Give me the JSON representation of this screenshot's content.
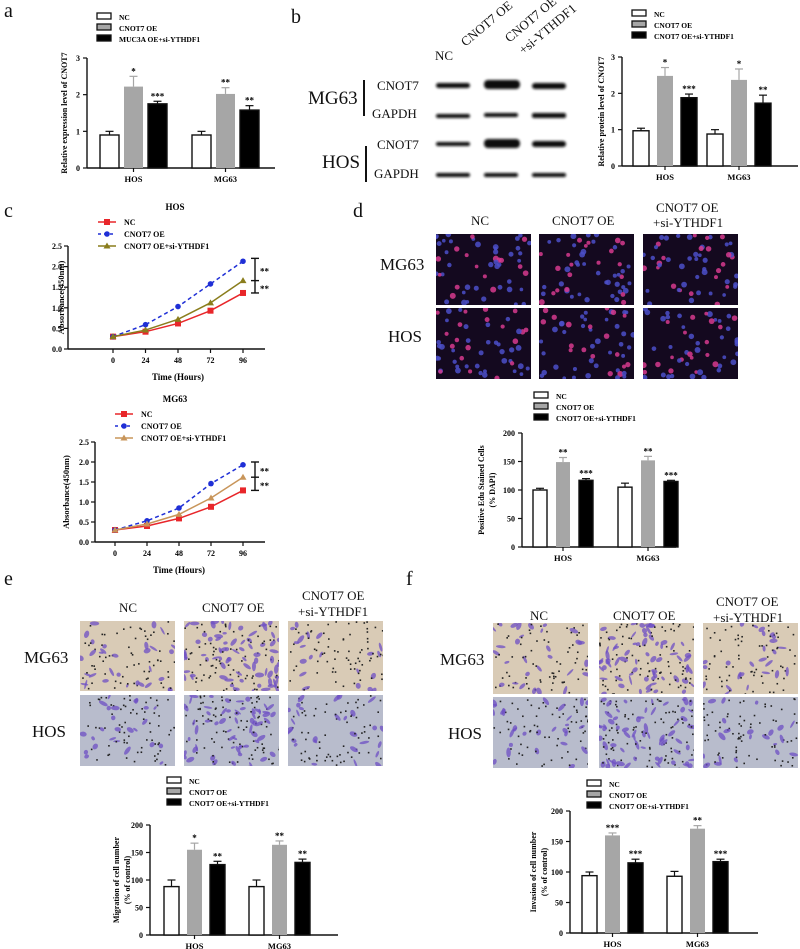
{
  "panels": {
    "a": {
      "letter": "a"
    },
    "b": {
      "letter": "b"
    },
    "c": {
      "letter": "c"
    },
    "d": {
      "letter": "d"
    },
    "e": {
      "letter": "e"
    },
    "f": {
      "letter": "f"
    }
  },
  "western_blot": {
    "columns": [
      "NC",
      "CNOT7 OE",
      "CNOT7 OE",
      "+si-YTHDF1"
    ],
    "cell_lines": [
      "MG63",
      "HOS"
    ],
    "proteins": [
      "CNOT7",
      "GAPDH",
      "CNOT7",
      "GAPDH"
    ]
  },
  "image_grid": {
    "columns": [
      "NC",
      "CNOT7 OE",
      "CNOT7 OE",
      "+si-YTHDF1"
    ],
    "rows": [
      "MG63",
      "HOS"
    ]
  },
  "colors": {
    "nc_fill": "#ffffff",
    "oe_fill": "#a6a6a6",
    "si_fill": "#000000",
    "line_nc": "#e8262a",
    "line_oe": "#1f2fd6",
    "line_si_hos": "#8a7d1c",
    "line_si_mg63": "#c8955a"
  },
  "chart_data": [
    {
      "id": "a",
      "type": "bar",
      "title": "",
      "xlabel": "",
      "ylabel": "Relative expression level of CNOT7",
      "categories": [
        "HOS",
        "MG63"
      ],
      "ylim": [
        0,
        3
      ],
      "yticks": [
        "0",
        "1",
        "2",
        "3"
      ],
      "legend": [
        "NC",
        "CNOT7 OE",
        "MUC3A OE+si-YTHDF1"
      ],
      "series": [
        {
          "name": "NC",
          "values": [
            0.9,
            0.9
          ],
          "errors": [
            0.1,
            0.1
          ],
          "sig": [
            "",
            ""
          ]
        },
        {
          "name": "CNOT7 OE",
          "values": [
            2.22,
            2.02
          ],
          "errors": [
            0.28,
            0.17
          ],
          "sig": [
            "*",
            "**"
          ]
        },
        {
          "name": "MUC3A OE+si-YTHDF1",
          "values": [
            1.75,
            1.58
          ],
          "errors": [
            0.07,
            0.12
          ],
          "sig": [
            "***",
            "**"
          ]
        }
      ]
    },
    {
      "id": "b",
      "type": "bar",
      "title": "",
      "xlabel": "",
      "ylabel": "Relative protein level of CNOT7",
      "categories": [
        "HOS",
        "MG63"
      ],
      "ylim": [
        0,
        3
      ],
      "yticks": [
        "0",
        "1",
        "2",
        "3"
      ],
      "legend": [
        "NC",
        "CNOT7 OE",
        "CNOT7 OE+si-YTHDF1"
      ],
      "series": [
        {
          "name": "NC",
          "values": [
            0.97,
            0.88
          ],
          "errors": [
            0.07,
            0.12
          ],
          "sig": [
            "",
            ""
          ]
        },
        {
          "name": "CNOT7 OE",
          "values": [
            2.48,
            2.37
          ],
          "errors": [
            0.23,
            0.3
          ],
          "sig": [
            "*",
            "*"
          ]
        },
        {
          "name": "CNOT7 OE+si-YTHDF1",
          "values": [
            1.88,
            1.73
          ],
          "errors": [
            0.1,
            0.22
          ],
          "sig": [
            "***",
            "**"
          ]
        }
      ]
    },
    {
      "id": "c-hos",
      "type": "line",
      "title": "HOS",
      "xlabel": "Time (Hours)",
      "ylabel": "Absorbance(450nm)",
      "x": [
        0,
        24,
        48,
        72,
        96
      ],
      "ylim": [
        0,
        2.5
      ],
      "yticks": [
        "0.0",
        "0.5",
        "1.0",
        "1.5",
        "2.0",
        "2.5"
      ],
      "legend": [
        "NC",
        "CNOT7 OE",
        "CNOT7 OE+si-YTHDF1"
      ],
      "series": [
        {
          "name": "NC",
          "values": [
            0.3,
            0.42,
            0.62,
            0.93,
            1.36
          ],
          "style": "solid",
          "marker": "square"
        },
        {
          "name": "CNOT7 OE",
          "values": [
            0.3,
            0.59,
            1.03,
            1.58,
            2.13
          ],
          "style": "dashed",
          "marker": "circle"
        },
        {
          "name": "CNOT7 OE+si-YTHDF1",
          "values": [
            0.3,
            0.46,
            0.72,
            1.12,
            1.66
          ],
          "style": "solid",
          "marker": "triangle"
        }
      ],
      "annotations": [
        "**",
        "**"
      ]
    },
    {
      "id": "c-mg63",
      "type": "line",
      "title": "MG63",
      "xlabel": "Time (Hours)",
      "ylabel": "Absorbance(450nm)",
      "x": [
        0,
        24,
        48,
        72,
        96
      ],
      "ylim": [
        0,
        2.5
      ],
      "yticks": [
        "0.0",
        "0.5",
        "1.0",
        "1.5",
        "2.0",
        "2.5"
      ],
      "legend": [
        "NC",
        "CNOT7 OE",
        "CNOT7 OE+si-YTHDF1"
      ],
      "series": [
        {
          "name": "NC",
          "values": [
            0.3,
            0.4,
            0.59,
            0.88,
            1.29
          ],
          "style": "solid",
          "marker": "square"
        },
        {
          "name": "CNOT7 OE",
          "values": [
            0.3,
            0.53,
            0.85,
            1.46,
            1.93
          ],
          "style": "dashed",
          "marker": "circle"
        },
        {
          "name": "CNOT7 OE+si-YTHDF1",
          "values": [
            0.3,
            0.45,
            0.69,
            1.1,
            1.62
          ],
          "style": "solid",
          "marker": "triangle"
        }
      ],
      "annotations": [
        "**",
        "**"
      ]
    },
    {
      "id": "d",
      "type": "bar",
      "title": "",
      "xlabel": "",
      "ylabel": "Positive Edu Stained Cells (% DAPI)",
      "categories": [
        "HOS",
        "MG63"
      ],
      "ylim": [
        0,
        200
      ],
      "yticks": [
        "0",
        "50",
        "100",
        "150",
        "200"
      ],
      "legend": [
        "NC",
        "CNOT7 OE",
        "CNOT7 OE+si-YTHDF1"
      ],
      "series": [
        {
          "name": "NC",
          "values": [
            100,
            105
          ],
          "errors": [
            3,
            7
          ],
          "sig": [
            "",
            ""
          ]
        },
        {
          "name": "CNOT7 OE",
          "values": [
            149,
            152
          ],
          "errors": [
            8,
            7
          ],
          "sig": [
            "**",
            "**"
          ]
        },
        {
          "name": "CNOT7 OE+si-YTHDF1",
          "values": [
            117,
            115
          ],
          "errors": [
            3,
            2
          ],
          "sig": [
            "***",
            "***"
          ]
        }
      ]
    },
    {
      "id": "e",
      "type": "bar",
      "title": "",
      "xlabel": "",
      "ylabel": "Migration of cell number (% of control)",
      "categories": [
        "HOS",
        "MG63"
      ],
      "ylim": [
        0,
        200
      ],
      "yticks": [
        "0",
        "50",
        "100",
        "150",
        "200"
      ],
      "legend": [
        "NC",
        "CNOT7 OE",
        "CNOT7 OE+si-YTHDF1"
      ],
      "series": [
        {
          "name": "NC",
          "values": [
            88,
            88
          ],
          "errors": [
            12,
            12
          ],
          "sig": [
            "",
            ""
          ]
        },
        {
          "name": "CNOT7 OE",
          "values": [
            155,
            164
          ],
          "errors": [
            12,
            7
          ],
          "sig": [
            "*",
            "**"
          ]
        },
        {
          "name": "CNOT7 OE+si-YTHDF1",
          "values": [
            128,
            132
          ],
          "errors": [
            6,
            6
          ],
          "sig": [
            "**",
            "**"
          ]
        }
      ]
    },
    {
      "id": "f",
      "type": "bar",
      "title": "",
      "xlabel": "",
      "ylabel": "Invasion of cell number (% of control)",
      "categories": [
        "HOS",
        "MG63"
      ],
      "ylim": [
        0,
        200
      ],
      "yticks": [
        "0",
        "50",
        "100",
        "150",
        "200"
      ],
      "legend": [
        "NC",
        "CNOT7 OE",
        "CNOT7 OE+si-YTHDF1"
      ],
      "series": [
        {
          "name": "NC",
          "values": [
            94,
            93
          ],
          "errors": [
            6,
            8
          ],
          "sig": [
            "",
            ""
          ]
        },
        {
          "name": "CNOT7 OE",
          "values": [
            160,
            171
          ],
          "errors": [
            4,
            5
          ],
          "sig": [
            "***",
            "**"
          ]
        },
        {
          "name": "CNOT7 OE+si-YTHDF1",
          "values": [
            115,
            117
          ],
          "errors": [
            6,
            4
          ],
          "sig": [
            "***",
            "***"
          ]
        }
      ]
    }
  ]
}
